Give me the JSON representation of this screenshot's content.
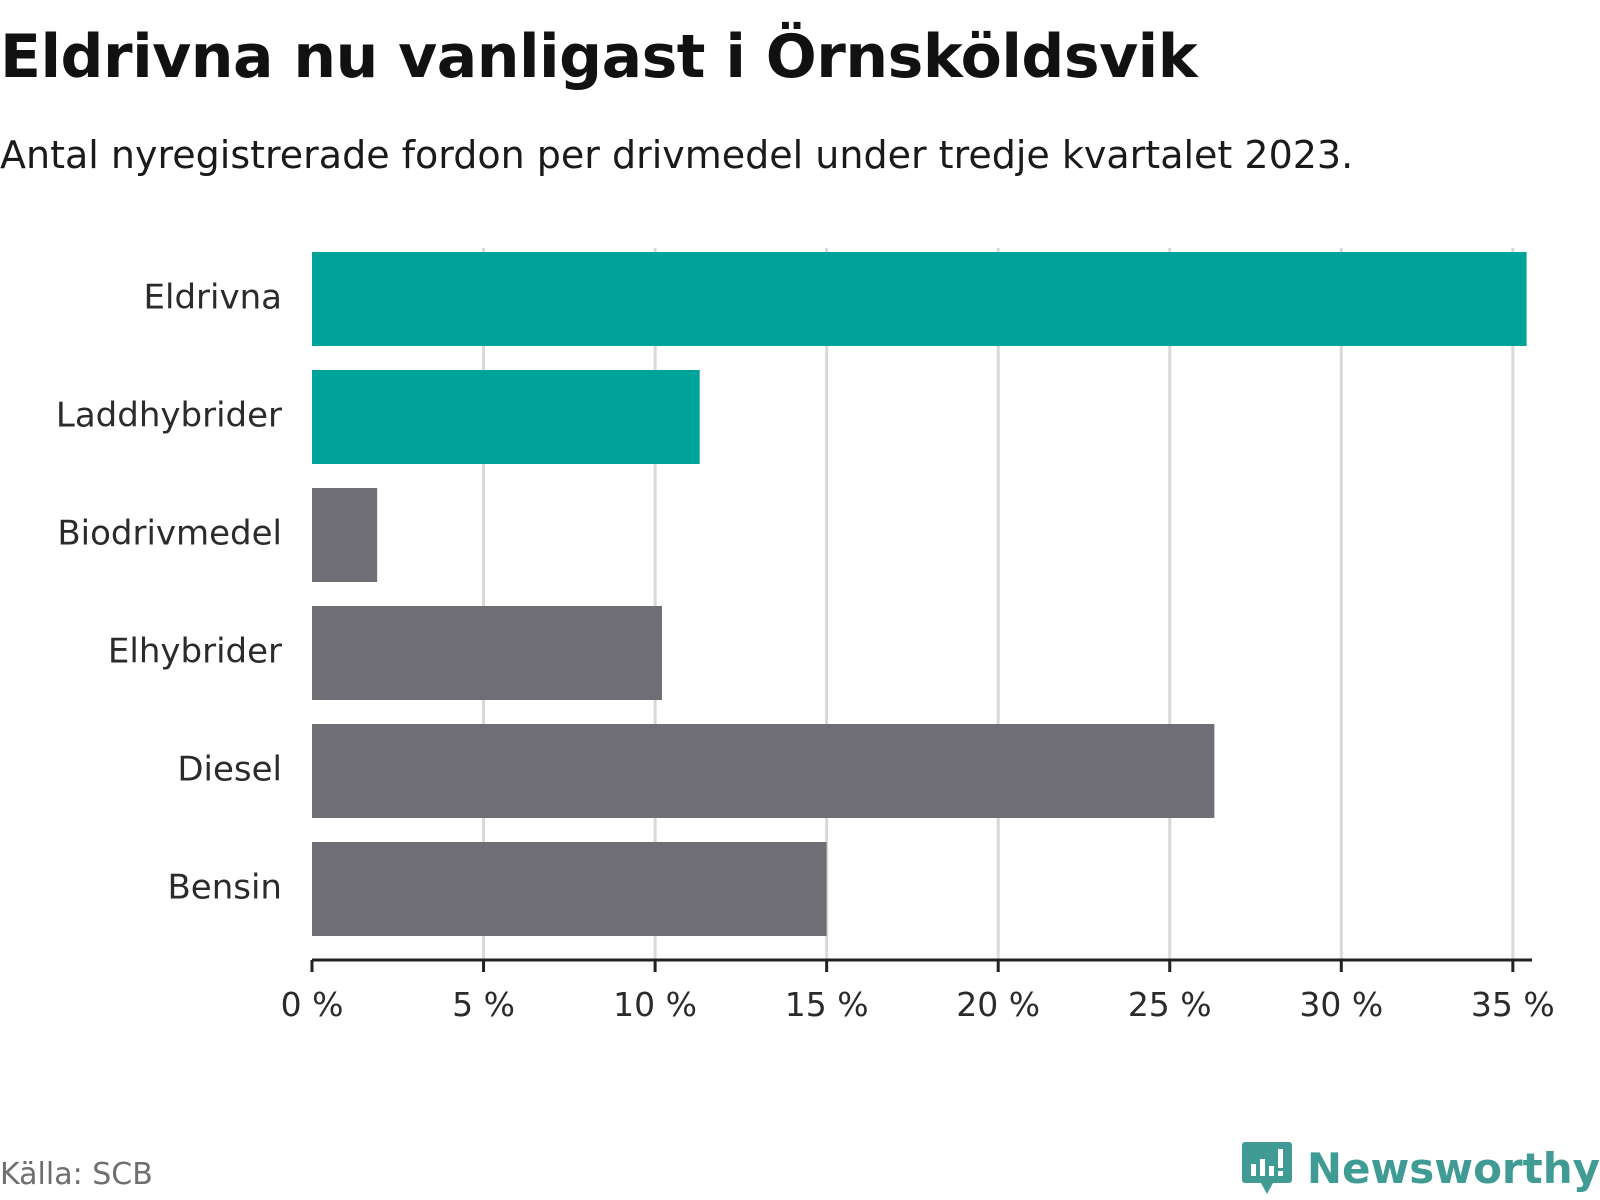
{
  "header": {
    "title": "Eldrivna nu vanligast i Örnsköldsvik",
    "subtitle": "Antal nyregistrerade fordon per drivmedel under tredje kvartalet 2023."
  },
  "chart_data": {
    "type": "bar",
    "orientation": "horizontal",
    "categories": [
      "Eldrivna",
      "Laddhybrider",
      "Biodrivmedel",
      "Elhybrider",
      "Diesel",
      "Bensin"
    ],
    "values": [
      35.4,
      11.3,
      1.9,
      10.2,
      26.3,
      15.0
    ],
    "unit": "%",
    "xlim": [
      0,
      35.5
    ],
    "x_ticks": [
      0,
      5,
      10,
      15,
      20,
      25,
      30,
      35
    ],
    "x_tick_labels": [
      "0 %",
      "5 %",
      "10 %",
      "15 %",
      "20 %",
      "25 %",
      "30 %",
      "35 %"
    ],
    "grid": true,
    "highlighted": [
      "Eldrivna",
      "Laddhybrider"
    ],
    "colors": {
      "highlight": "#00a39a",
      "default": "#6f6e74",
      "grid": "#d9d9d9",
      "axis": "#222222"
    }
  },
  "footer": {
    "source": "Källa: SCB",
    "brand": "Newsworthy",
    "brand_icon": "newsworthy-logo-icon",
    "brand_color": "#3f9b94"
  }
}
